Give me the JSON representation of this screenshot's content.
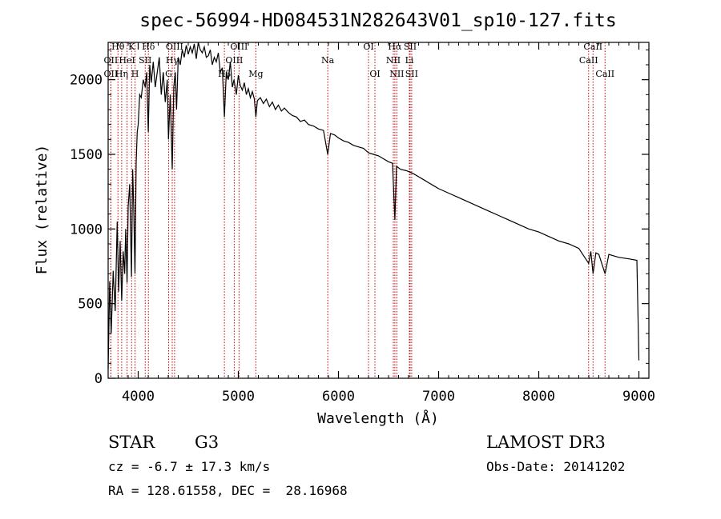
{
  "chart_data": {
    "type": "line",
    "title": "spec-56994-HD084531N282643V01_sp10-127.fits",
    "xlabel": "Wavelength (Å)",
    "ylabel": "Flux (relative)",
    "xlim": [
      3700,
      9100
    ],
    "ylim": [
      0,
      2250
    ],
    "xticks": [
      4000,
      5000,
      6000,
      7000,
      8000,
      9000
    ],
    "xtick_labels": [
      "4000",
      "5000",
      "6000",
      "7000",
      "8000",
      "9000"
    ],
    "yticks": [
      0,
      500,
      1000,
      1500,
      2000
    ],
    "ytick_labels": [
      "0",
      "500",
      "1000",
      "1500",
      "2000"
    ],
    "series": [
      {
        "name": "flux",
        "points": [
          [
            3700,
            60
          ],
          [
            3715,
            650
          ],
          [
            3730,
            300
          ],
          [
            3750,
            720
          ],
          [
            3770,
            450
          ],
          [
            3790,
            1050
          ],
          [
            3805,
            580
          ],
          [
            3820,
            920
          ],
          [
            3835,
            520
          ],
          [
            3850,
            850
          ],
          [
            3865,
            700
          ],
          [
            3875,
            1000
          ],
          [
            3889,
            640
          ],
          [
            3900,
            1150
          ],
          [
            3915,
            1300
          ],
          [
            3933,
            680
          ],
          [
            3945,
            1400
          ],
          [
            3955,
            1150
          ],
          [
            3968,
            700
          ],
          [
            3980,
            1450
          ],
          [
            3990,
            1650
          ],
          [
            4000,
            1700
          ],
          [
            4015,
            1900
          ],
          [
            4030,
            1880
          ],
          [
            4050,
            2000
          ],
          [
            4070,
            1950
          ],
          [
            4085,
            2050
          ],
          [
            4101,
            1650
          ],
          [
            4115,
            2100
          ],
          [
            4130,
            1980
          ],
          [
            4150,
            2120
          ],
          [
            4170,
            1950
          ],
          [
            4190,
            2050
          ],
          [
            4210,
            2150
          ],
          [
            4230,
            1900
          ],
          [
            4250,
            2050
          ],
          [
            4270,
            1850
          ],
          [
            4290,
            2000
          ],
          [
            4302,
            1600
          ],
          [
            4320,
            1900
          ],
          [
            4340,
            1400
          ],
          [
            4355,
            1950
          ],
          [
            4370,
            2050
          ],
          [
            4383,
            1800
          ],
          [
            4400,
            2150
          ],
          [
            4420,
            2100
          ],
          [
            4440,
            2200
          ],
          [
            4460,
            2150
          ],
          [
            4480,
            2230
          ],
          [
            4500,
            2170
          ],
          [
            4520,
            2220
          ],
          [
            4540,
            2180
          ],
          [
            4560,
            2240
          ],
          [
            4580,
            2140
          ],
          [
            4600,
            2250
          ],
          [
            4620,
            2200
          ],
          [
            4640,
            2180
          ],
          [
            4660,
            2220
          ],
          [
            4680,
            2150
          ],
          [
            4700,
            2160
          ],
          [
            4720,
            2200
          ],
          [
            4740,
            2100
          ],
          [
            4760,
            2150
          ],
          [
            4780,
            2120
          ],
          [
            4800,
            2180
          ],
          [
            4820,
            2050
          ],
          [
            4840,
            2080
          ],
          [
            4861,
            1750
          ],
          [
            4880,
            2050
          ],
          [
            4900,
            2000
          ],
          [
            4920,
            2120
          ],
          [
            4940,
            1950
          ],
          [
            4957,
            2000
          ],
          [
            4980,
            1900
          ],
          [
            5000,
            2030
          ],
          [
            5020,
            1960
          ],
          [
            5040,
            1930
          ],
          [
            5060,
            1980
          ],
          [
            5080,
            1900
          ],
          [
            5100,
            1940
          ],
          [
            5120,
            1880
          ],
          [
            5140,
            1920
          ],
          [
            5160,
            1870
          ],
          [
            5175,
            1750
          ],
          [
            5190,
            1860
          ],
          [
            5220,
            1880
          ],
          [
            5250,
            1840
          ],
          [
            5280,
            1870
          ],
          [
            5310,
            1820
          ],
          [
            5340,
            1850
          ],
          [
            5370,
            1800
          ],
          [
            5400,
            1830
          ],
          [
            5430,
            1790
          ],
          [
            5460,
            1810
          ],
          [
            5500,
            1780
          ],
          [
            5540,
            1760
          ],
          [
            5580,
            1750
          ],
          [
            5620,
            1720
          ],
          [
            5660,
            1730
          ],
          [
            5700,
            1700
          ],
          [
            5750,
            1690
          ],
          [
            5800,
            1670
          ],
          [
            5850,
            1660
          ],
          [
            5893,
            1500
          ],
          [
            5920,
            1640
          ],
          [
            5960,
            1630
          ],
          [
            6000,
            1610
          ],
          [
            6050,
            1590
          ],
          [
            6100,
            1580
          ],
          [
            6150,
            1560
          ],
          [
            6200,
            1550
          ],
          [
            6250,
            1540
          ],
          [
            6300,
            1510
          ],
          [
            6350,
            1500
          ],
          [
            6400,
            1490
          ],
          [
            6450,
            1470
          ],
          [
            6500,
            1450
          ],
          [
            6540,
            1440
          ],
          [
            6563,
            1060
          ],
          [
            6580,
            1420
          ],
          [
            6620,
            1400
          ],
          [
            6680,
            1390
          ],
          [
            6750,
            1370
          ],
          [
            6800,
            1350
          ],
          [
            6850,
            1330
          ],
          [
            6900,
            1310
          ],
          [
            6950,
            1290
          ],
          [
            7000,
            1270
          ],
          [
            7100,
            1240
          ],
          [
            7200,
            1210
          ],
          [
            7300,
            1180
          ],
          [
            7400,
            1150
          ],
          [
            7500,
            1120
          ],
          [
            7600,
            1090
          ],
          [
            7700,
            1060
          ],
          [
            7800,
            1030
          ],
          [
            7900,
            1000
          ],
          [
            8000,
            980
          ],
          [
            8100,
            950
          ],
          [
            8200,
            920
          ],
          [
            8300,
            900
          ],
          [
            8400,
            870
          ],
          [
            8498,
            770
          ],
          [
            8520,
            850
          ],
          [
            8542,
            700
          ],
          [
            8570,
            840
          ],
          [
            8600,
            830
          ],
          [
            8662,
            700
          ],
          [
            8700,
            830
          ],
          [
            8800,
            810
          ],
          [
            8900,
            800
          ],
          [
            8980,
            790
          ],
          [
            9000,
            120
          ]
        ]
      }
    ],
    "lines": [
      {
        "label": "Hθ",
        "x": 3798,
        "row": 0
      },
      {
        "label": "OII",
        "x": 3727,
        "row": 1
      },
      {
        "label": "OII",
        "x": 3727,
        "row": 2
      },
      {
        "label": "Hη",
        "x": 3835,
        "row": 2
      },
      {
        "label": "K",
        "x": 3934,
        "row": 0
      },
      {
        "label": "HeI",
        "x": 3889,
        "row": 1
      },
      {
        "label": "SII",
        "x": 4070,
        "row": 1
      },
      {
        "label": "H",
        "x": 3968,
        "row": 2
      },
      {
        "label": "Hδ",
        "x": 4102,
        "row": 0
      },
      {
        "label": "OIII",
        "x": 4363,
        "row": 0
      },
      {
        "label": "Hγ",
        "x": 4340,
        "row": 1
      },
      {
        "label": "G",
        "x": 4304,
        "row": 2
      },
      {
        "label": "OIII",
        "x": 5007,
        "row": 0
      },
      {
        "label": "OIII",
        "x": 4959,
        "row": 1
      },
      {
        "label": "Hβ",
        "x": 4861,
        "row": 2
      },
      {
        "label": "Mg",
        "x": 5175,
        "row": 2
      },
      {
        "label": "Na",
        "x": 5893,
        "row": 1
      },
      {
        "label": "OI",
        "x": 6300,
        "row": 0
      },
      {
        "label": "OI",
        "x": 6364,
        "row": 2
      },
      {
        "label": "Hα",
        "x": 6563,
        "row": 0
      },
      {
        "label": "SII",
        "x": 6716,
        "row": 0
      },
      {
        "label": "NII",
        "x": 6548,
        "row": 1
      },
      {
        "label": "Li",
        "x": 6708,
        "row": 1
      },
      {
        "label": "NII",
        "x": 6583,
        "row": 2
      },
      {
        "label": "SII",
        "x": 6731,
        "row": 2
      },
      {
        "label": "CaII",
        "x": 8542,
        "row": 0
      },
      {
        "label": "CaII",
        "x": 8498,
        "row": 1
      },
      {
        "label": "CaII",
        "x": 8662,
        "row": 2
      }
    ],
    "line_color": "#c80000"
  },
  "info": {
    "object_type": "STAR",
    "subclass": "G3",
    "survey": "LAMOST DR3",
    "cz": "cz = -6.7 ± 17.3 km/s",
    "obs_date": "Obs-Date: 20141202",
    "coords": "RA = 128.61558, DEC =  28.16968"
  }
}
